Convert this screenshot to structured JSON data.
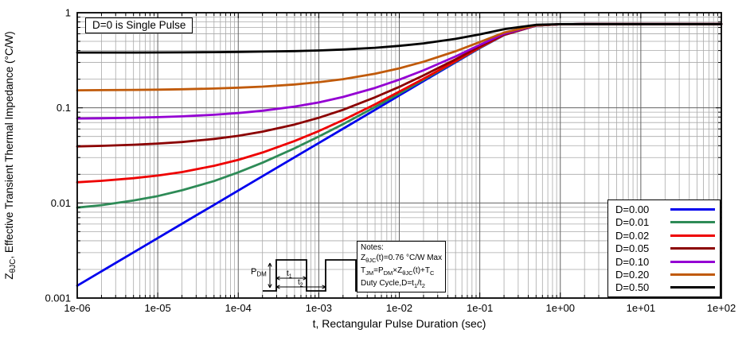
{
  "accent_colors": {
    "grid_minor": "#a9a9a9",
    "grid_major": "#636363",
    "axis": "#000000",
    "background": "#ffffff"
  },
  "annotation": {
    "text": "D=0 is Single Pulse"
  },
  "notes": {
    "lines": [
      [
        {
          "t": "Notes:"
        }
      ],
      [
        {
          "t": "Z"
        },
        {
          "s": "θJC"
        },
        {
          "t": "(t)=0.76 °C/W Max"
        }
      ],
      [
        {
          "t": "T"
        },
        {
          "s": "JM"
        },
        {
          "t": "=P"
        },
        {
          "s": "DM"
        },
        {
          "t": "×Z"
        },
        {
          "s": "θJC"
        },
        {
          "t": "(t)+T"
        },
        {
          "s": "C"
        }
      ],
      [
        {
          "t": "Duty Cycle,D=t"
        },
        {
          "s": "1"
        },
        {
          "t": "/t"
        },
        {
          "s": "2"
        }
      ]
    ]
  },
  "inset": {
    "p_main": "P",
    "p_sub": "DM",
    "t1_main": "t",
    "t1_sub": "1",
    "t2_main": "t",
    "t2_sub": "2"
  },
  "chart_data": {
    "type": "line",
    "title": "",
    "xlabel": "t, Rectangular Pulse Duration (sec)",
    "ylabel_segments": [
      {
        "t": "Z"
      },
      {
        "s": "θJC"
      },
      {
        "t": ", Effective Transient Thermal Impedance (°C/W)"
      }
    ],
    "x_scale": "log",
    "y_scale": "log",
    "xlim": [
      1e-06,
      100.0
    ],
    "ylim": [
      0.001,
      1
    ],
    "grid": "major+minor",
    "legend_position": "bottom-right",
    "annotation": "D=0 is Single Pulse",
    "x_ticks": [
      {
        "v": 1e-06,
        "label": "1e-06"
      },
      {
        "v": 1e-05,
        "label": "1e-05"
      },
      {
        "v": 0.0001,
        "label": "1e-04"
      },
      {
        "v": 0.001,
        "label": "1e-03"
      },
      {
        "v": 0.01,
        "label": "1e-02"
      },
      {
        "v": 0.1,
        "label": "1e-01"
      },
      {
        "v": 1,
        "label": "1e+00"
      },
      {
        "v": 10,
        "label": "1e+01"
      },
      {
        "v": 100,
        "label": "1e+02"
      }
    ],
    "y_ticks": [
      {
        "v": 0.001,
        "label": "0.001"
      },
      {
        "v": 0.01,
        "label": "0.01"
      },
      {
        "v": 0.1,
        "label": "0.1"
      },
      {
        "v": 1,
        "label": "1"
      }
    ],
    "steady_state_zthjc": 0.76,
    "x": [
      1e-06,
      2e-06,
      5e-06,
      1e-05,
      2e-05,
      5e-05,
      0.0001,
      0.0002,
      0.0005,
      0.001,
      0.002,
      0.005,
      0.01,
      0.02,
      0.05,
      0.1,
      0.2,
      0.5,
      1,
      2,
      5,
      10,
      20,
      50,
      100
    ],
    "series": [
      {
        "name": "D=0.00",
        "color": "#0000ee",
        "values": [
          0.00135,
          0.00191,
          0.00302,
          0.00427,
          0.00604,
          0.00954,
          0.0135,
          0.0191,
          0.0302,
          0.0427,
          0.0603,
          0.0953,
          0.135,
          0.191,
          0.301,
          0.425,
          0.582,
          0.732,
          0.756,
          0.759,
          0.76,
          0.76,
          0.76,
          0.76,
          0.76
        ]
      },
      {
        "name": "D=0.01",
        "color": "#2e8b57",
        "values": [
          0.00894,
          0.00949,
          0.0106,
          0.0118,
          0.0136,
          0.017,
          0.021,
          0.0265,
          0.0375,
          0.0499,
          0.0673,
          0.102,
          0.141,
          0.197,
          0.306,
          0.428,
          0.584,
          0.732,
          0.756,
          0.759,
          0.76,
          0.76,
          0.76,
          0.76,
          0.76
        ]
      },
      {
        "name": "D=0.02",
        "color": "#ee0000",
        "values": [
          0.0165,
          0.0171,
          0.0182,
          0.0194,
          0.0211,
          0.0246,
          0.0284,
          0.0339,
          0.0448,
          0.057,
          0.0743,
          0.109,
          0.148,
          0.202,
          0.31,
          0.432,
          0.586,
          0.733,
          0.756,
          0.759,
          0.76,
          0.76,
          0.76,
          0.76,
          0.76
        ]
      },
      {
        "name": "D=0.05",
        "color": "#8b0000",
        "values": [
          0.0393,
          0.0398,
          0.0409,
          0.0421,
          0.0437,
          0.0471,
          0.0508,
          0.0562,
          0.0667,
          0.0786,
          0.0953,
          0.129,
          0.166,
          0.219,
          0.324,
          0.442,
          0.591,
          0.733,
          0.756,
          0.759,
          0.76,
          0.76,
          0.76,
          0.76,
          0.76
        ]
      },
      {
        "name": "D=0.10",
        "color": "#9400d3",
        "values": [
          0.0772,
          0.0777,
          0.0787,
          0.0798,
          0.0814,
          0.0846,
          0.0882,
          0.0932,
          0.103,
          0.114,
          0.13,
          0.162,
          0.198,
          0.248,
          0.347,
          0.459,
          0.6,
          0.735,
          0.756,
          0.759,
          0.76,
          0.76,
          0.76,
          0.76,
          0.76
        ]
      },
      {
        "name": "D=0.20",
        "color": "#c05a0a",
        "values": [
          0.153,
          0.1535,
          0.1544,
          0.1554,
          0.1568,
          0.1596,
          0.163,
          0.167,
          0.176,
          0.186,
          0.2,
          0.228,
          0.26,
          0.305,
          0.393,
          0.492,
          0.618,
          0.738,
          0.757,
          0.759,
          0.76,
          0.76,
          0.76,
          0.76,
          0.76
        ]
      },
      {
        "name": "D=0.50",
        "color": "#000000",
        "values": [
          0.381,
          0.381,
          0.3815,
          0.382,
          0.383,
          0.385,
          0.387,
          0.39,
          0.395,
          0.401,
          0.41,
          0.428,
          0.448,
          0.476,
          0.531,
          0.593,
          0.671,
          0.746,
          0.758,
          0.7595,
          0.76,
          0.76,
          0.76,
          0.76,
          0.76
        ]
      }
    ]
  }
}
